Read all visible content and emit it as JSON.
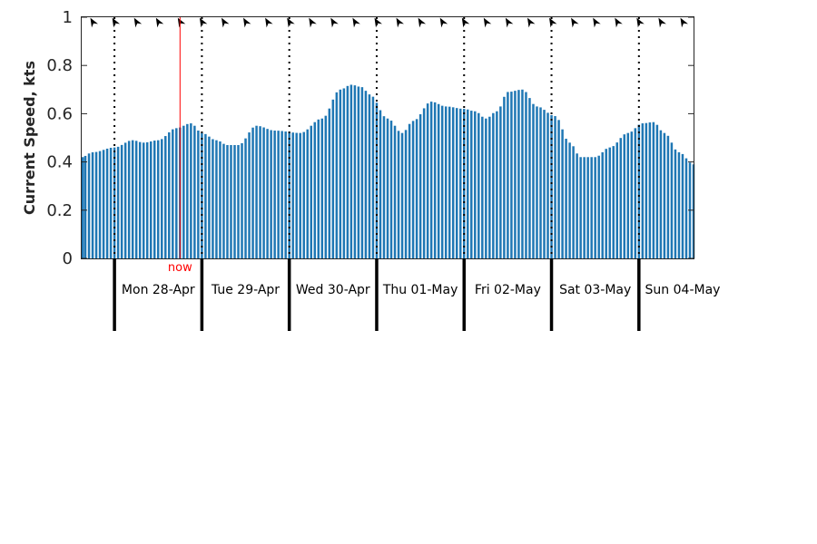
{
  "chart_data": {
    "type": "bar",
    "ylabel": "Current Speed, kts",
    "ylim": [
      0,
      1
    ],
    "yticks": [
      0,
      0.2,
      0.4,
      0.6,
      0.8,
      1
    ],
    "ytick_labels": [
      "0",
      "0.2",
      "0.4",
      "0.6",
      "0.8",
      "1"
    ],
    "grid": false,
    "bar_color": "#1f77b4",
    "x_start_hour": 0,
    "x_end_hour": 168,
    "day_boundaries_hours": [
      9,
      33,
      57,
      81,
      105,
      129,
      153
    ],
    "day_labels": [
      "Mon 28-Apr",
      "Tue 29-Apr",
      "Wed 30-Apr",
      "Thu 01-May",
      "Fri 02-May",
      "Sat 03-May",
      "Sun 04-May"
    ],
    "now": {
      "label": "now",
      "hour": 27,
      "color": "#ff0000"
    },
    "arrow_color": "#000000",
    "arrow_direction": "northwest",
    "keypoints": [
      [
        0,
        0.42
      ],
      [
        3,
        0.44
      ],
      [
        9,
        0.46
      ],
      [
        14,
        0.49
      ],
      [
        17,
        0.48
      ],
      [
        21,
        0.49
      ],
      [
        26,
        0.54
      ],
      [
        30,
        0.56
      ],
      [
        33,
        0.52
      ],
      [
        37,
        0.49
      ],
      [
        40,
        0.47
      ],
      [
        43,
        0.47
      ],
      [
        48,
        0.55
      ],
      [
        53,
        0.53
      ],
      [
        60,
        0.52
      ],
      [
        66,
        0.58
      ],
      [
        71,
        0.7
      ],
      [
        74,
        0.72
      ],
      [
        77,
        0.71
      ],
      [
        79,
        0.68
      ],
      [
        84,
        0.58
      ],
      [
        88,
        0.52
      ],
      [
        91,
        0.57
      ],
      [
        96,
        0.65
      ],
      [
        100,
        0.63
      ],
      [
        105,
        0.62
      ],
      [
        108,
        0.61
      ],
      [
        111,
        0.58
      ],
      [
        114,
        0.61
      ],
      [
        117,
        0.69
      ],
      [
        121,
        0.7
      ],
      [
        125,
        0.63
      ],
      [
        130,
        0.59
      ],
      [
        134,
        0.48
      ],
      [
        137,
        0.42
      ],
      [
        141,
        0.42
      ],
      [
        145,
        0.46
      ],
      [
        150,
        0.52
      ],
      [
        154,
        0.56
      ],
      [
        157,
        0.565
      ],
      [
        160,
        0.52
      ],
      [
        164,
        0.44
      ],
      [
        168,
        0.39
      ]
    ]
  }
}
